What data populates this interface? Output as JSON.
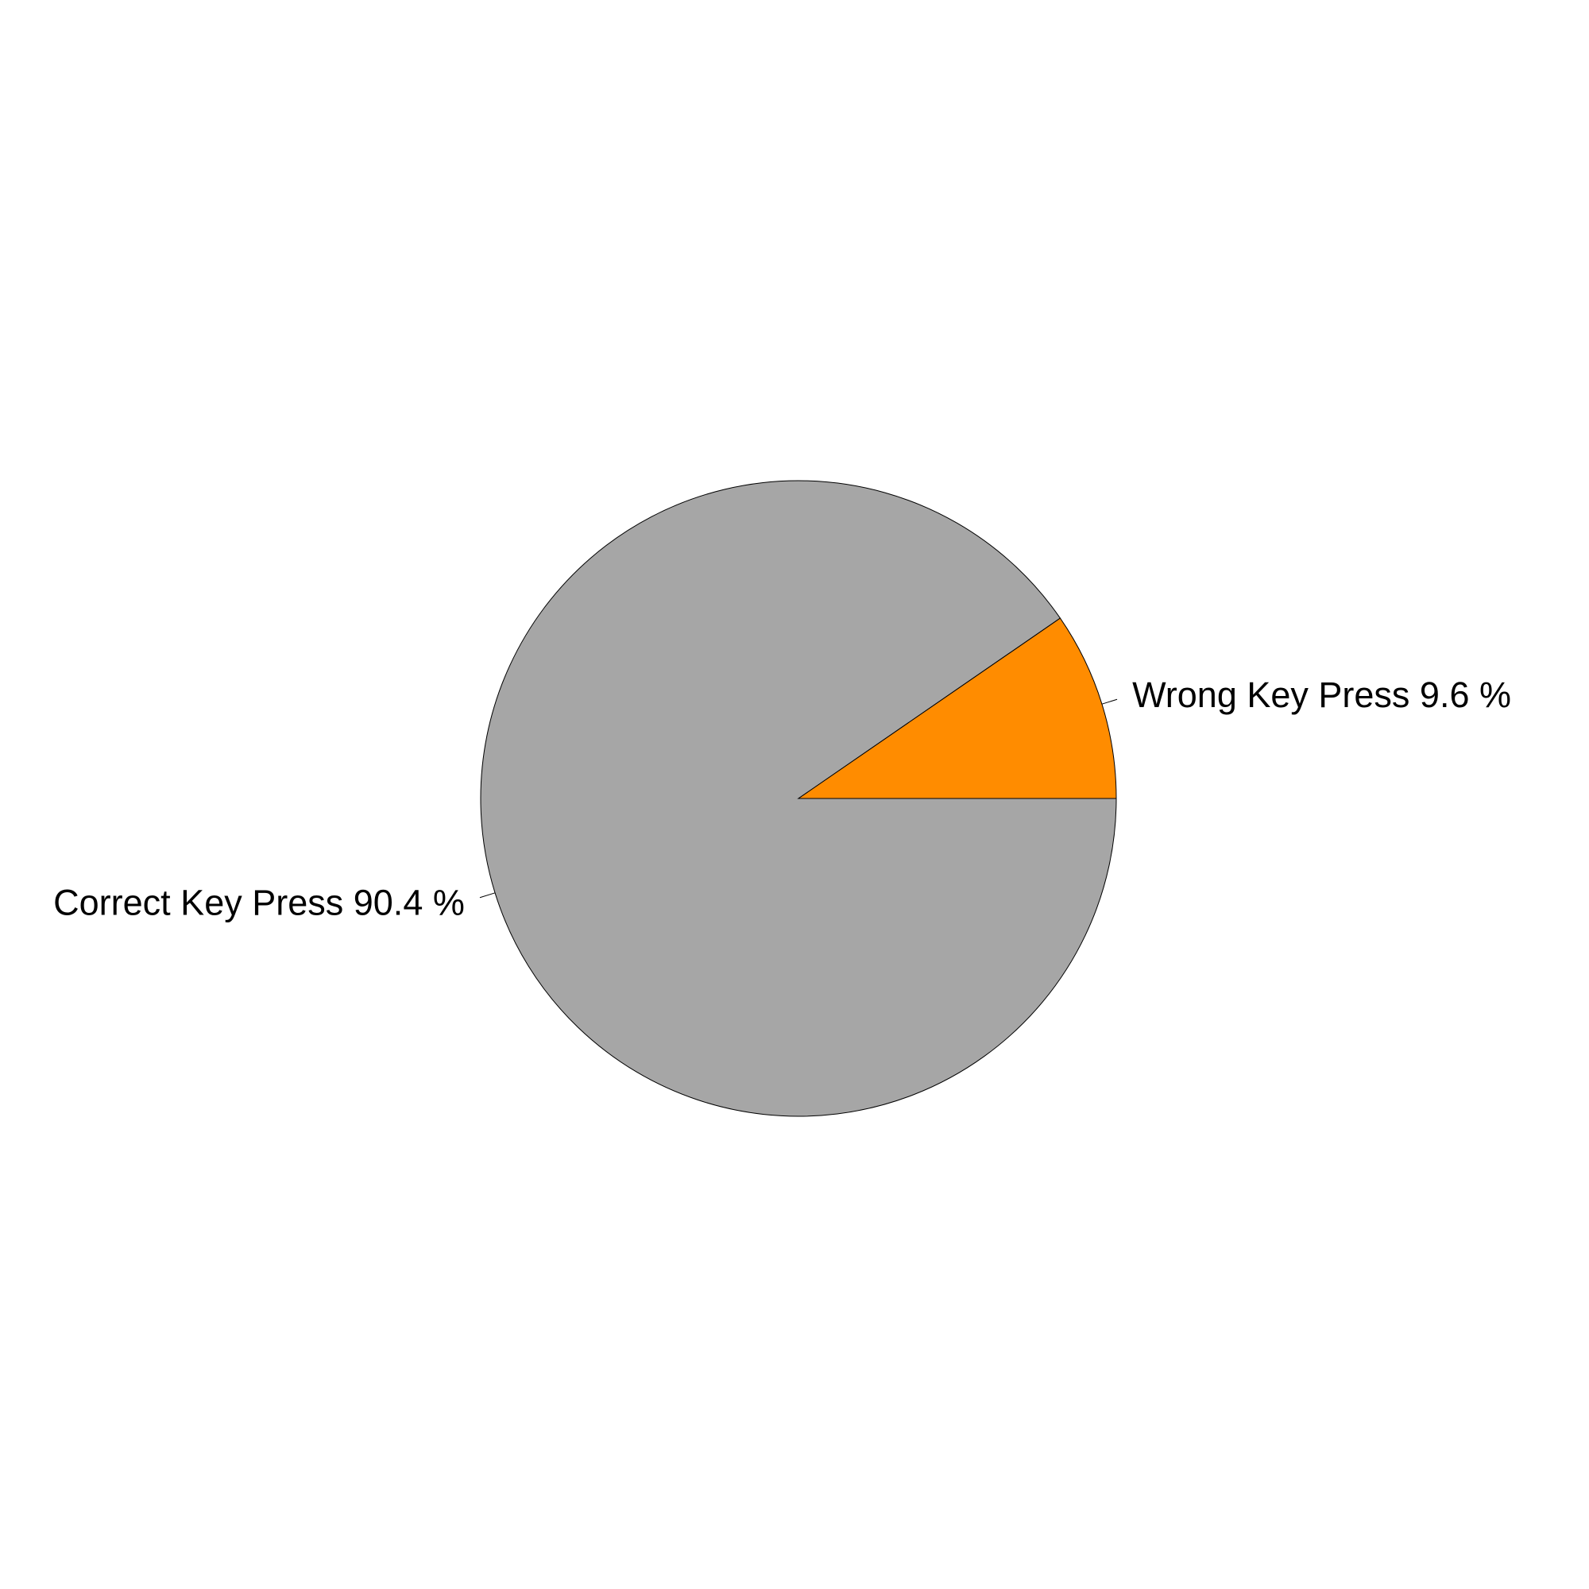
{
  "chart_data": {
    "type": "pie",
    "slices": [
      {
        "label": "Correct Key Press 90.4 %",
        "value": 90.4,
        "color": "#A6A6A6"
      },
      {
        "label": "Wrong Key Press 9.6 %",
        "value": 9.6,
        "color": "#FF8C00"
      }
    ],
    "direction": "clockwise",
    "start_angle": "3 o'clock",
    "legend": "none"
  }
}
